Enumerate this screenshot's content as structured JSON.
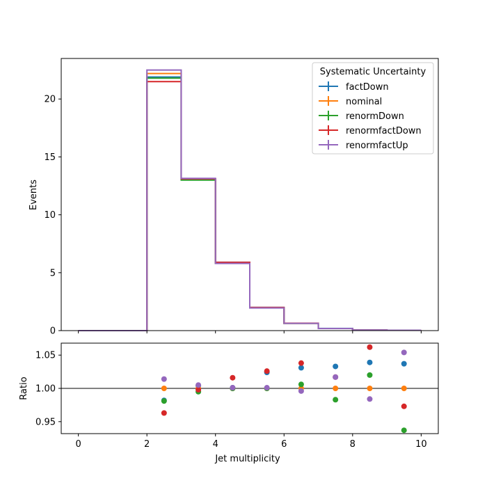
{
  "chart_data": [
    {
      "panel": "main",
      "type": "step",
      "xlabel": "",
      "ylabel": "Events",
      "xlim": [
        -0.5,
        10.5
      ],
      "ylim": [
        0,
        23.5
      ],
      "x_ticks": [
        0,
        2,
        4,
        6,
        8,
        10
      ],
      "y_ticks": [
        0,
        5,
        10,
        15,
        20
      ],
      "bin_edges": [
        0,
        1,
        2,
        3,
        4,
        5,
        6,
        7,
        8,
        9,
        10
      ],
      "legend": {
        "title": "Systematic Uncertainty",
        "placement": "top-right"
      },
      "series": [
        {
          "name": "factDown",
          "color": "#1f77b4",
          "values": [
            0,
            0,
            21.9,
            13.1,
            5.9,
            2.0,
            0.63,
            0.19,
            0.05,
            0.03
          ]
        },
        {
          "name": "nominal",
          "color": "#ff7f0e",
          "values": [
            0,
            0,
            22.2,
            13.1,
            5.8,
            1.95,
            0.62,
            0.18,
            0.05,
            0.03
          ]
        },
        {
          "name": "renormDown",
          "color": "#2ca02c",
          "values": [
            0,
            0,
            21.8,
            13.0,
            5.8,
            1.95,
            0.62,
            0.18,
            0.05,
            0.03
          ]
        },
        {
          "name": "renormfactDown",
          "color": "#d62728",
          "values": [
            0,
            0,
            21.5,
            13.1,
            5.9,
            2.0,
            0.64,
            0.18,
            0.05,
            0.03
          ]
        },
        {
          "name": "renormfactUp",
          "color": "#9467bd",
          "values": [
            0,
            0,
            22.5,
            13.15,
            5.8,
            1.95,
            0.62,
            0.18,
            0.05,
            0.03
          ]
        }
      ]
    },
    {
      "panel": "ratio",
      "type": "scatter",
      "xlabel": "Jet multiplicity",
      "ylabel": "Ratio",
      "xlim": [
        -0.5,
        10.5
      ],
      "ylim": [
        0.932,
        1.068
      ],
      "x_ticks": [
        0,
        2,
        4,
        6,
        8,
        10
      ],
      "y_ticks": [
        0.95,
        1.0,
        1.05
      ],
      "y_tick_labels": [
        "0.95",
        "1.00",
        "1.05"
      ],
      "reference_line": 1.0,
      "x": [
        2.5,
        3.5,
        4.5,
        5.5,
        6.5,
        7.5,
        8.5,
        9.5
      ],
      "series": [
        {
          "name": "factDown",
          "color": "#1f77b4",
          "values": [
            0.982,
            1.004,
            1.001,
            1.024,
            1.031,
            1.033,
            1.039,
            1.037
          ]
        },
        {
          "name": "nominal",
          "color": "#ff7f0e",
          "values": [
            1.0,
            1.0,
            1.0,
            1.0,
            1.0,
            1.0,
            1.0,
            1.0
          ]
        },
        {
          "name": "renormDown",
          "color": "#2ca02c",
          "values": [
            0.981,
            0.995,
            1.0,
            1.0,
            1.006,
            0.983,
            1.02,
            0.937
          ]
        },
        {
          "name": "renormfactDown",
          "color": "#d62728",
          "values": [
            0.963,
            0.998,
            1.016,
            1.026,
            1.038,
            1.017,
            1.062,
            0.973
          ]
        },
        {
          "name": "renormfactUp",
          "color": "#9467bd",
          "values": [
            1.014,
            1.005,
            1.001,
            1.001,
            0.996,
            1.017,
            0.984,
            1.054
          ]
        }
      ]
    }
  ]
}
